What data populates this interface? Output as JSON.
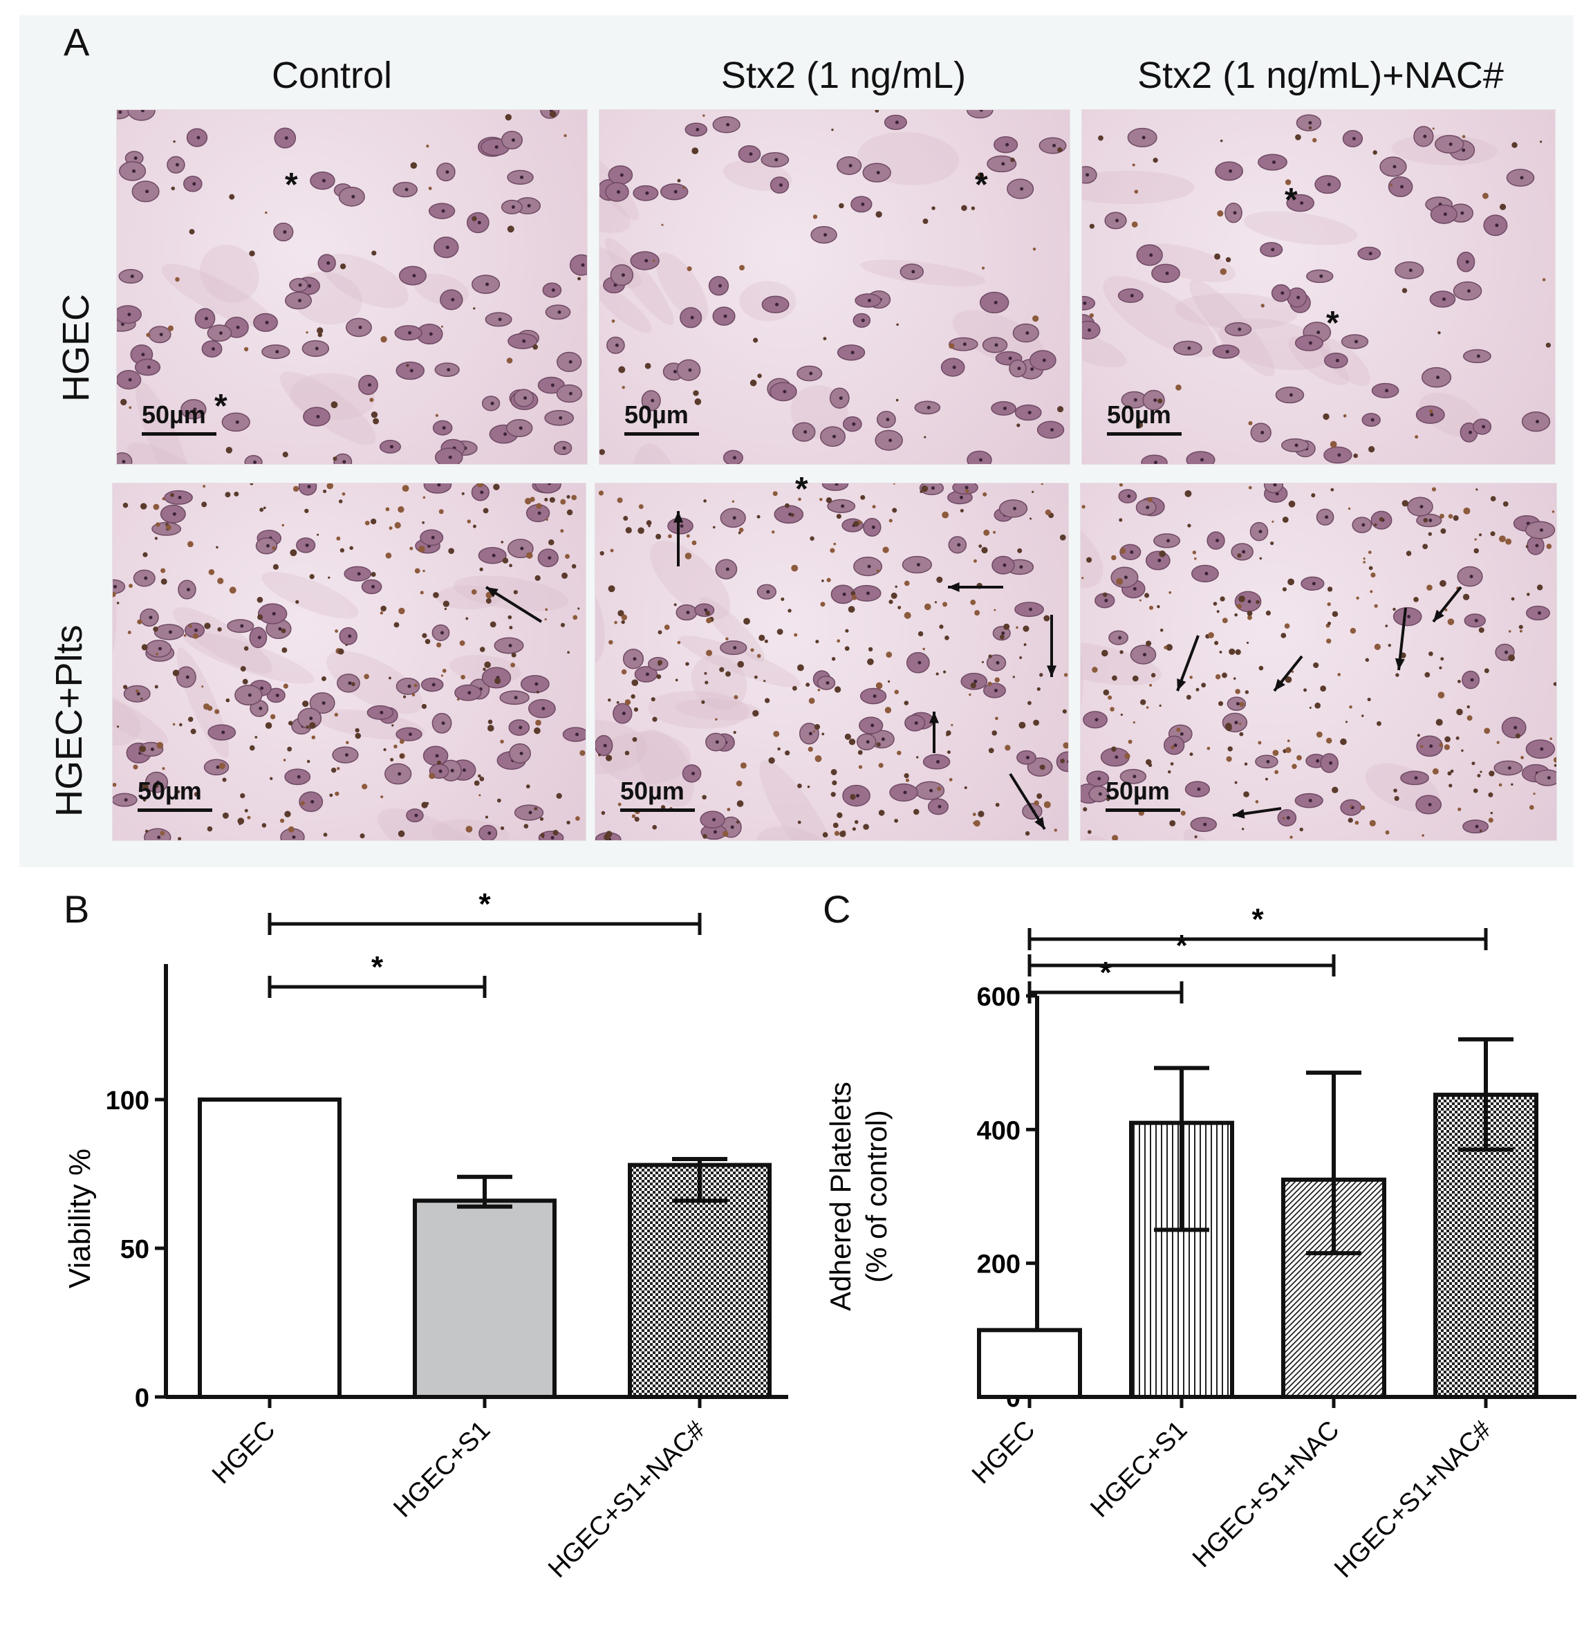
{
  "panel_a": {
    "panel_label": "A",
    "column_titles": [
      "Control",
      "Stx2 (1 ng/mL)",
      "Stx2 (1 ng/mL)+NAC#"
    ],
    "row_titles": [
      "HGEC",
      "HGEC+Plts"
    ],
    "scale_bar_label": "50µm",
    "marker_symbol": "*"
  },
  "chart_data": [
    {
      "panel_label": "B",
      "type": "bar",
      "categories": [
        "HGEC",
        "HGEC+S1",
        "HGEC+S1+NAC#"
      ],
      "values": [
        100,
        66,
        78
      ],
      "error_up": [
        0,
        8,
        2
      ],
      "error_down": [
        0,
        2,
        12
      ],
      "ylabel": "Viability %",
      "yticks": [
        0,
        50,
        100
      ],
      "ylim": [
        0,
        120
      ],
      "bar_fills": [
        "white",
        "#c4c6c8",
        "checker"
      ],
      "significance": [
        {
          "from": 0,
          "to": 1,
          "label": "*"
        },
        {
          "from": 0,
          "to": 2,
          "label": "*"
        }
      ]
    },
    {
      "panel_label": "C",
      "type": "bar",
      "categories": [
        "HGEC",
        "HGEC+S1",
        "HGEC+S1+NAC",
        "HGEC+S1+NAC#"
      ],
      "values": [
        100,
        410,
        325,
        452
      ],
      "error_up": [
        0,
        82,
        160,
        83
      ],
      "error_down": [
        0,
        160,
        110,
        82
      ],
      "ylabel": "Adhered Platelets",
      "ylabel2": "(% of control)",
      "yticks": [
        0,
        200,
        400,
        600
      ],
      "ylim": [
        0,
        600
      ],
      "bar_fills": [
        "white",
        "vertical-lines",
        "diagonal-lines",
        "checker"
      ],
      "significance": [
        {
          "from": 0,
          "to": 1,
          "label": "*"
        },
        {
          "from": 0,
          "to": 2,
          "label": "*"
        },
        {
          "from": 0,
          "to": 3,
          "label": "*"
        }
      ]
    }
  ]
}
